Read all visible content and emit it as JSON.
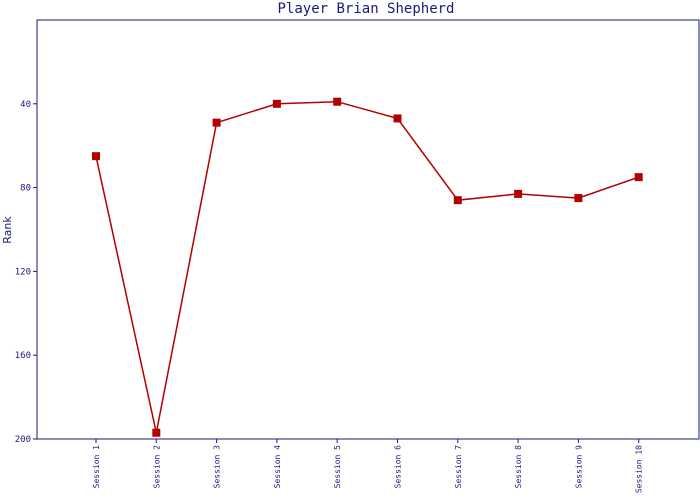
{
  "colors": {
    "axis": "#1a1a7a",
    "series": "#b30000",
    "background": "#ffffff"
  },
  "chart_data": {
    "type": "line",
    "title": "Player Brian Shepherd",
    "xlabel": "",
    "ylabel": "Rank",
    "y_inverted": true,
    "ylim": [
      200,
      0
    ],
    "yticks": [
      {
        "value": 40,
        "label": "40"
      },
      {
        "value": 80,
        "label": "80"
      },
      {
        "value": 120,
        "label": "120"
      },
      {
        "value": 160,
        "label": "160"
      },
      {
        "value": 200,
        "label": "200"
      }
    ],
    "grid": false,
    "legend": "none",
    "categories": [
      "Session 1",
      "Session 2",
      "Session 3",
      "Session 4",
      "Session 5",
      "Session 6",
      "Session 7",
      "Session 8",
      "Session 9",
      "Session 10"
    ],
    "series": [
      {
        "values": [
          65,
          197,
          49,
          40,
          39,
          47,
          86,
          83,
          85,
          75
        ]
      }
    ]
  }
}
